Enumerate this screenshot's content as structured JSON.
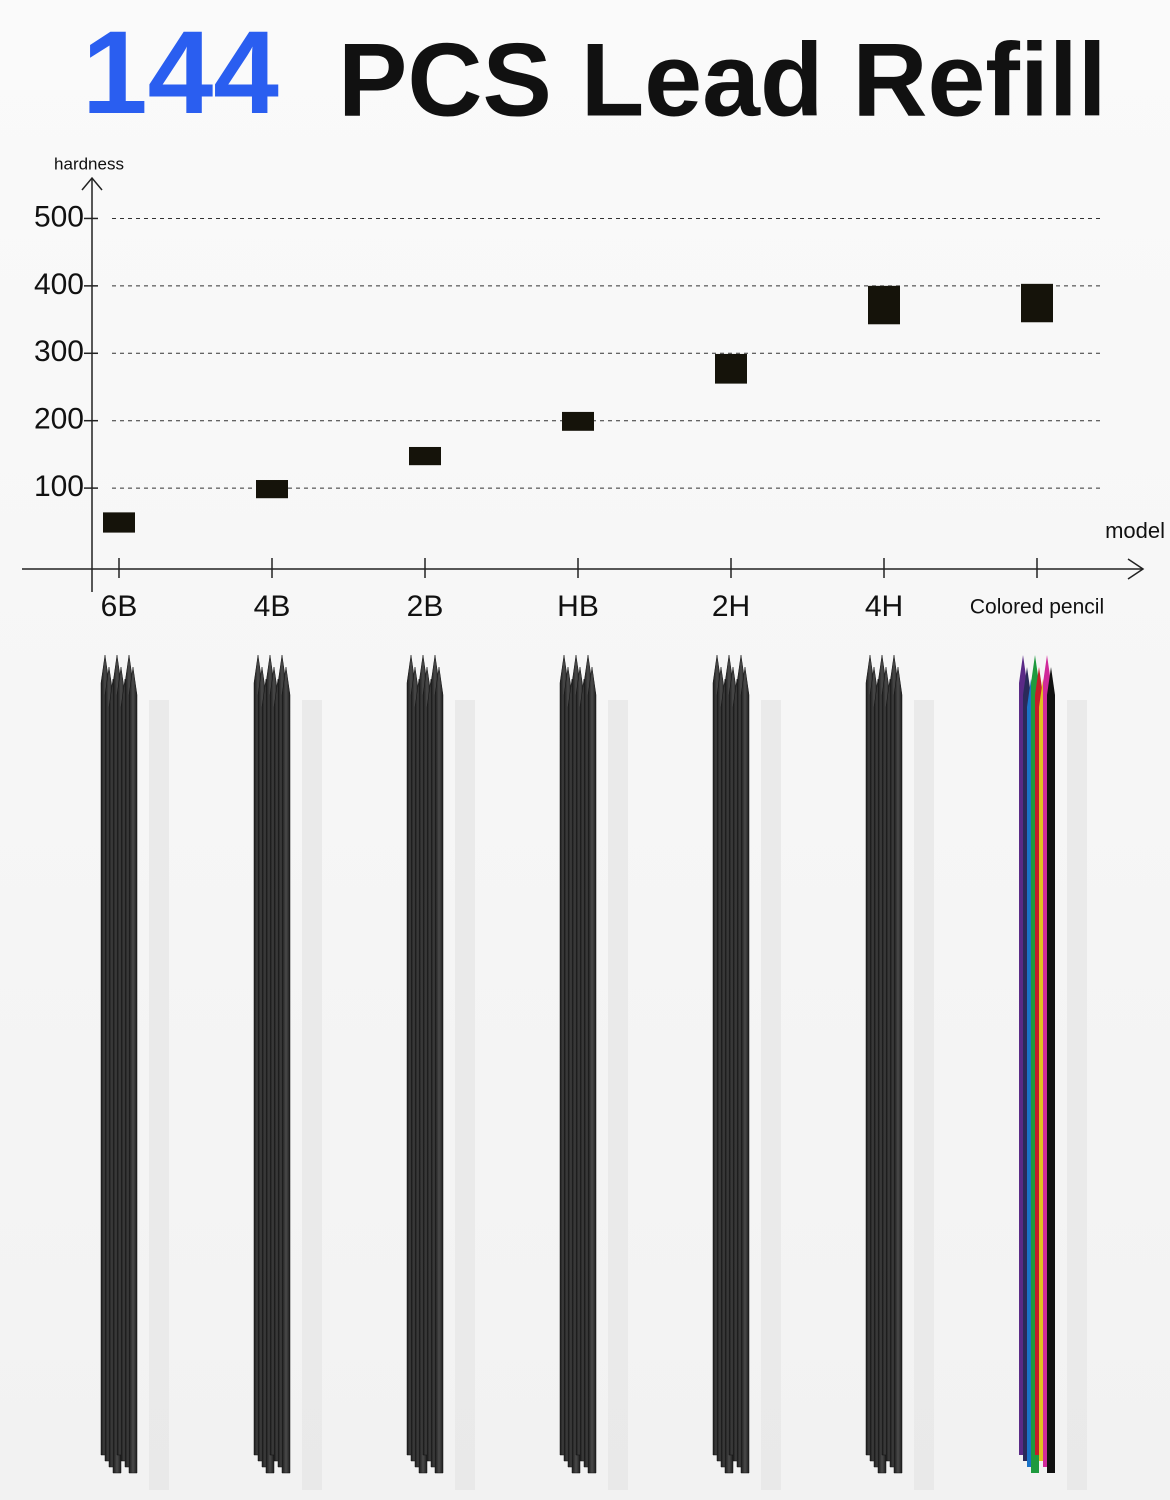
{
  "chart_data": {
    "type": "range",
    "title_number": "144",
    "title_number_color": "#2a5ef0",
    "title": "PCS Lead Refill",
    "y_label": "hardness",
    "x_label": "model",
    "categories": [
      "6B",
      "4B",
      "2B",
      "HB",
      "2H",
      "4H",
      "Colored pencil"
    ],
    "low": [
      34,
      85,
      134,
      185,
      255,
      343,
      346
    ],
    "high": [
      64,
      112,
      161,
      213,
      299,
      400,
      403
    ],
    "color": "#15130a",
    "ylim": [
      -20,
      560
    ],
    "yticks": [
      100,
      200,
      300,
      400,
      500
    ],
    "grid": true
  }
}
